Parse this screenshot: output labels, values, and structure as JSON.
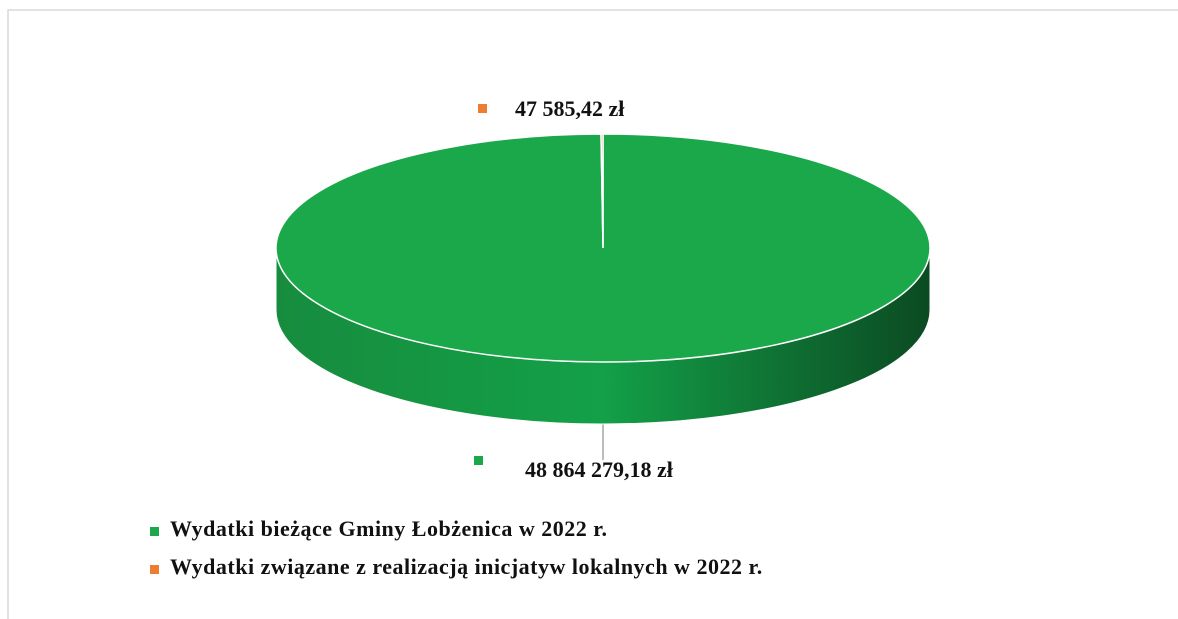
{
  "chart_data": {
    "type": "pie",
    "categories": [
      "Wydatki bieżące Gminy Łobżenica w 2022 r.",
      "Wydatki związane z realizacją inicjatyw lokalnych w 2022 r."
    ],
    "values": [
      48864279.18,
      47585.42
    ],
    "value_labels": [
      "48 864 279,18 zł",
      "47 585,42 zł"
    ],
    "colors": [
      "#1aa84b",
      "#ed7d31"
    ],
    "legend": "bottom"
  }
}
